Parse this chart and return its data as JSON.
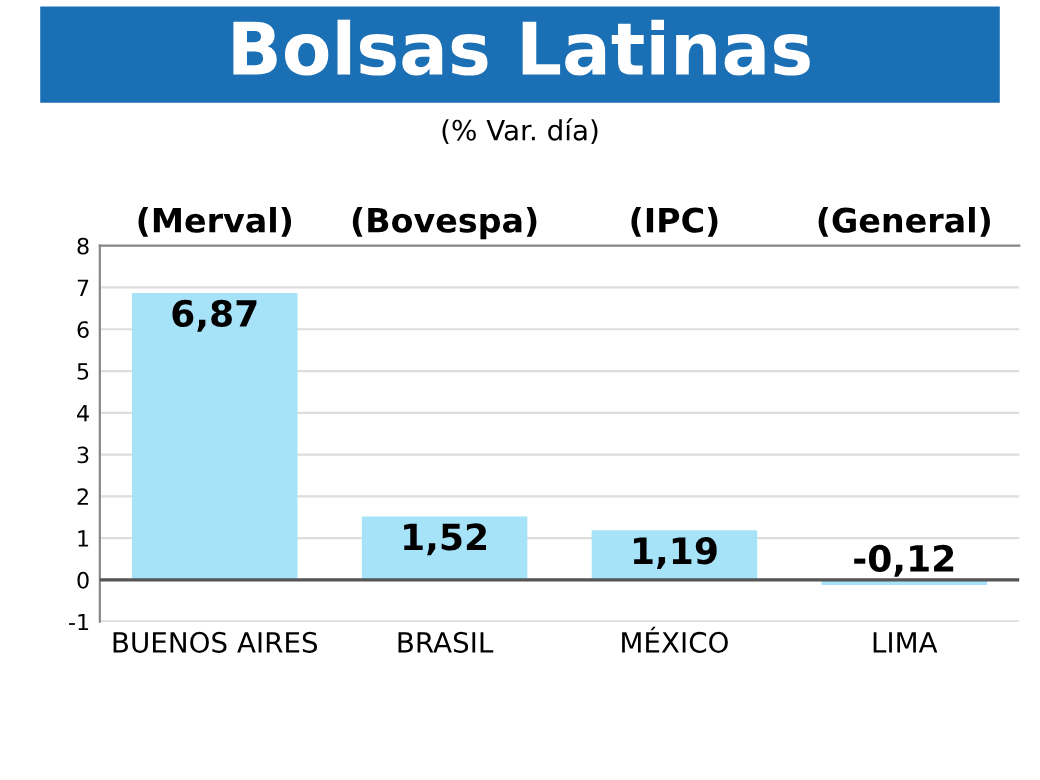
{
  "chart_data": {
    "type": "bar",
    "title": "Bolsas Latinas",
    "subtitle": "(% Var. día)",
    "categories": [
      "BUENOS AIRES",
      "BRASIL",
      "MÉXICO",
      "LIMA"
    ],
    "values": [
      6.87,
      1.52,
      1.19,
      -0.12
    ],
    "value_labels": [
      "6,87",
      "1,52",
      "1,19",
      "-0,12"
    ],
    "color": "#a6e3f8",
    "ylim": [
      -1,
      8
    ],
    "yticks": [
      -1,
      0,
      1,
      2,
      3,
      4,
      5,
      6,
      7,
      8
    ],
    "grid": "y",
    "ref_lines": [
      {
        "axis": "y",
        "value": 0,
        "color": "#555555"
      }
    ],
    "annotations": [
      "(Merval)",
      "(Bovespa)",
      "(IPC)",
      "(General)"
    ]
  }
}
